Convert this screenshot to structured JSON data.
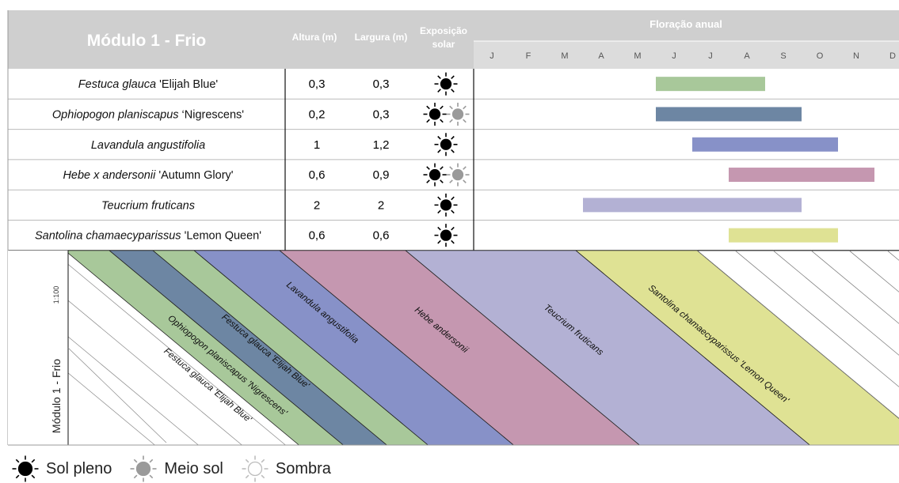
{
  "header": {
    "module_title": "Módulo 1 - Frio",
    "col_height": "Altura (m)",
    "col_width": "Largura (m)",
    "col_exposure_line1": "Exposição",
    "col_exposure_line2": "solar",
    "flowering_title": "Floração anual",
    "months": [
      "J",
      "F",
      "M",
      "A",
      "M",
      "J",
      "J",
      "A",
      "S",
      "O",
      "N",
      "D"
    ]
  },
  "plants": [
    {
      "name_italic": "Festuca glauca",
      "name_suffix": " 'Elijah Blue'",
      "height": "0,3",
      "width": "0,3",
      "exposure": [
        "sol-pleno"
      ],
      "color": "#a8c89a",
      "bloom_start": 6,
      "bloom_end": 8
    },
    {
      "name_italic": "Ophiopogon planiscapus",
      "name_suffix": " ‘Nigrescens'",
      "height": "0,2",
      "width": "0,3",
      "exposure": [
        "sol-pleno",
        "meio-sol"
      ],
      "color": "#6d86a3",
      "bloom_start": 6,
      "bloom_end": 9
    },
    {
      "name_italic": "Lavandula angustifolia",
      "name_suffix": "",
      "height": "1",
      "width": "1,2",
      "exposure": [
        "sol-pleno"
      ],
      "color": "#8791c8",
      "bloom_start": 7,
      "bloom_end": 10
    },
    {
      "name_italic": "Hebe x andersonii",
      "name_suffix": " 'Autumn Glory'",
      "height": "0,6",
      "width": "0,9",
      "exposure": [
        "sol-pleno",
        "meio-sol"
      ],
      "color": "#c597b0",
      "bloom_start": 8,
      "bloom_end": 11
    },
    {
      "name_italic": "Teucrium fruticans",
      "name_suffix": "",
      "height": "2",
      "width": "2",
      "exposure": [
        "sol-pleno"
      ],
      "color": "#b3b1d4",
      "bloom_start": 4,
      "bloom_end": 9
    },
    {
      "name_italic": "Santolina chamaecyparissus",
      "name_suffix": " 'Lemon Queen'",
      "height": "0,6",
      "width": "0,6",
      "exposure": [
        "sol-pleno"
      ],
      "color": "#dfe294",
      "bloom_start": 8,
      "bloom_end": 10
    }
  ],
  "plan": {
    "scale": "1:100",
    "module_label": "Módulo 1 - Frio",
    "stripes": [
      {
        "label": "Festuca glauca 'Elijah Blue'",
        "color": "#a8c89a"
      },
      {
        "label": "Ophiopogon planiscapus 'Nigrescens'",
        "color": "#6d86a3"
      },
      {
        "label": "Festuca glauca 'Elijah Blue'",
        "color": "#a8c89a"
      },
      {
        "label": "Lavandula angustifolia",
        "color": "#8791c8"
      },
      {
        "label": "Hebe andersonii",
        "color": "#c597b0"
      },
      {
        "label": "Teucrium fruticans",
        "color": "#b3b1d4"
      },
      {
        "label": "Santolina chamaecyparissus 'Lemon Queen'",
        "color": "#dfe294"
      }
    ]
  },
  "legend": [
    {
      "key": "sol-pleno",
      "label": "Sol pleno"
    },
    {
      "key": "meio-sol",
      "label": "Meio sol"
    },
    {
      "key": "sombra",
      "label": "Sombra"
    }
  ]
}
